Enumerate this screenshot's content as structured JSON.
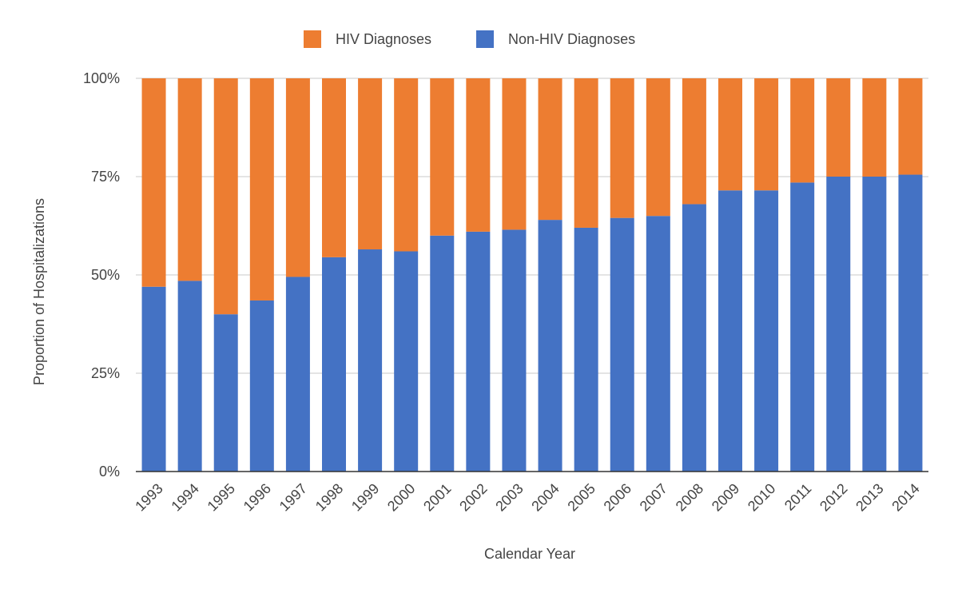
{
  "chart_data": {
    "type": "bar",
    "stacked": true,
    "percent": true,
    "categories": [
      "1993",
      "1994",
      "1995",
      "1996",
      "1997",
      "1998",
      "1999",
      "2000",
      "2001",
      "2002",
      "2003",
      "2004",
      "2005",
      "2006",
      "2007",
      "2008",
      "2009",
      "2010",
      "2011",
      "2012",
      "2013",
      "2014"
    ],
    "series": [
      {
        "name": "Non-HIV Diagnoses",
        "color": "#4472c4",
        "values": [
          47,
          48.5,
          40,
          43.5,
          49.5,
          54.5,
          56.5,
          56,
          60,
          61,
          61.5,
          64,
          62,
          64.5,
          65,
          68,
          71.5,
          71.5,
          73.5,
          75,
          75,
          75.5
        ]
      },
      {
        "name": "HIV Diagnoses",
        "color": "#ed7d31",
        "values": [
          53,
          51.5,
          60,
          56.5,
          50.5,
          45.5,
          43.5,
          44,
          40,
          39,
          38.5,
          36,
          38,
          35.5,
          35,
          32,
          28.5,
          28.5,
          26.5,
          25,
          25,
          24.5
        ]
      }
    ],
    "legend_order": [
      "HIV Diagnoses",
      "Non-HIV Diagnoses"
    ],
    "legend_position": "top",
    "xlabel": "Calendar Year",
    "ylabel": "Proportion of Hospitalizations",
    "ylim": [
      0,
      100
    ],
    "yticks": [
      0,
      25,
      50,
      75,
      100
    ],
    "ytick_labels": [
      "0%",
      "25%",
      "50%",
      "75%",
      "100%"
    ],
    "grid": true
  }
}
